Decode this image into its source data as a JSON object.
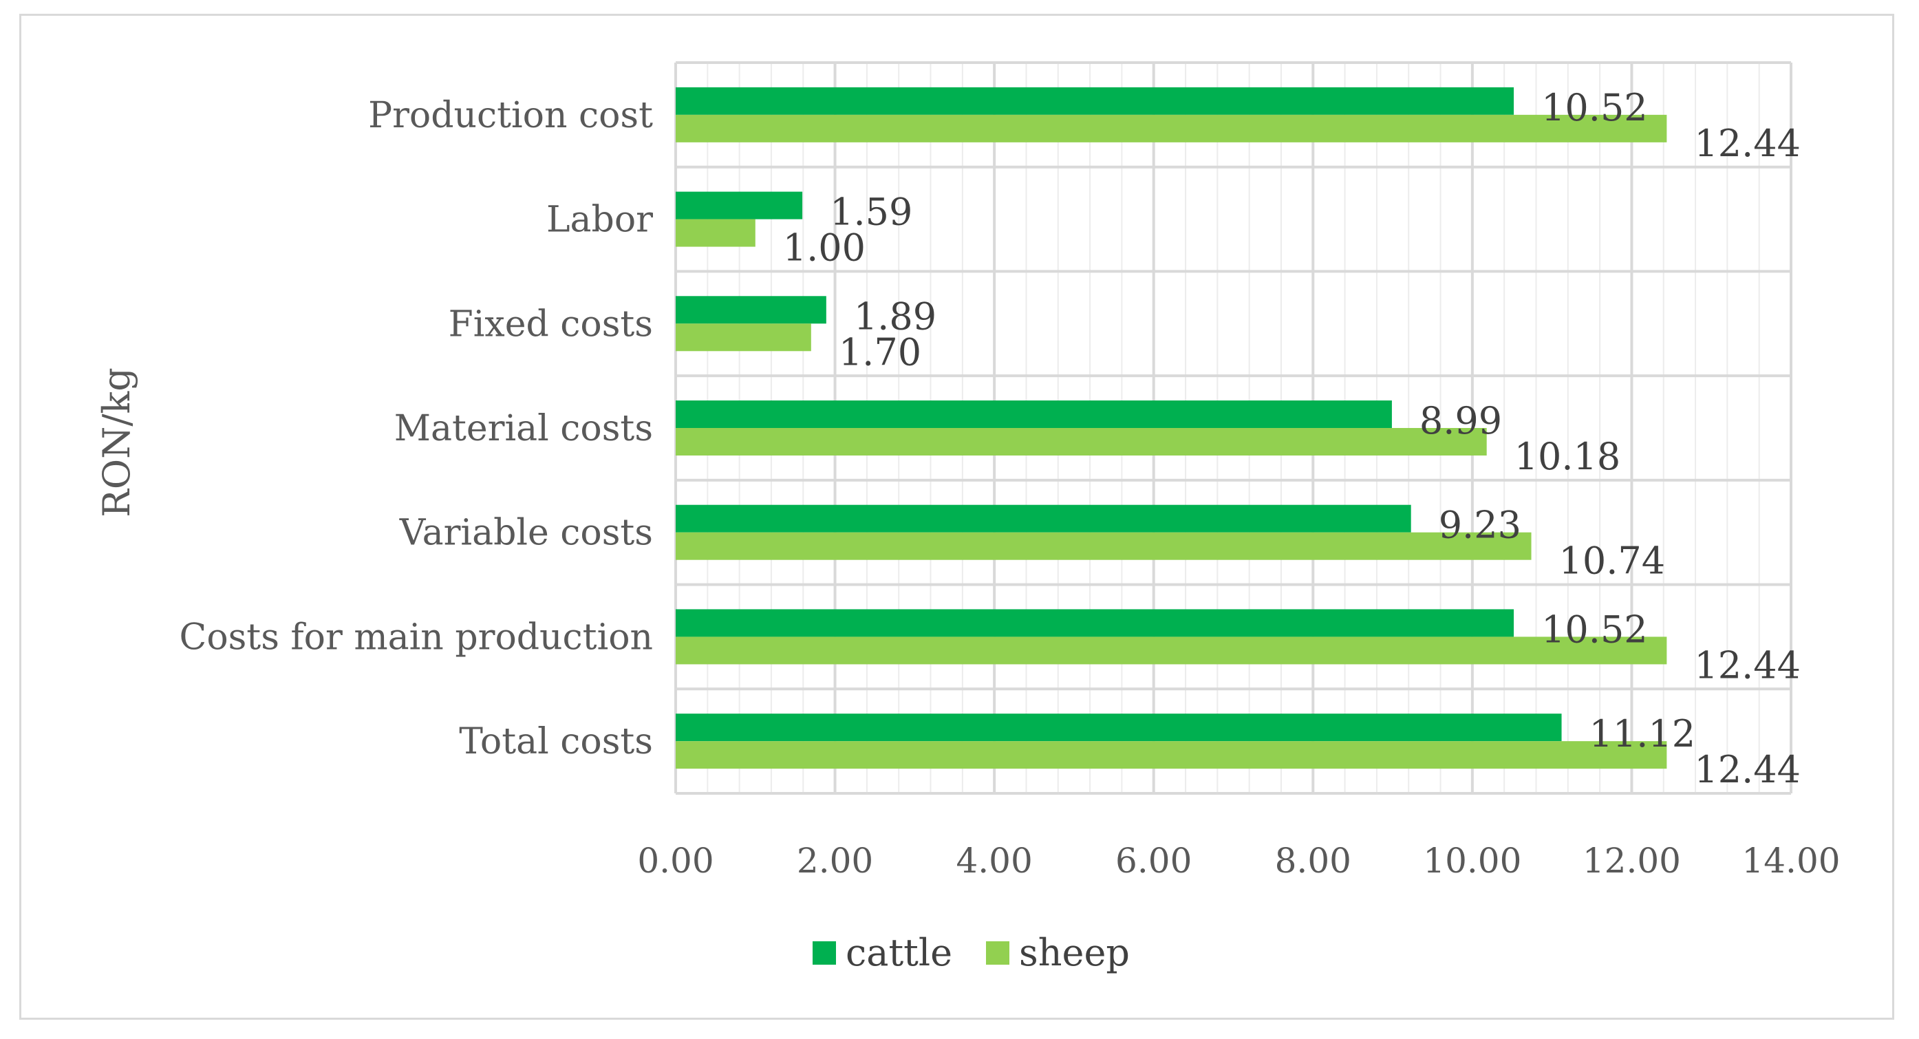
{
  "chart_data": {
    "type": "bar",
    "orientation": "horizontal",
    "categories": [
      "Total costs",
      "Costs for main production",
      "Variable costs",
      "Material costs",
      "Fixed costs",
      "Labor",
      "Production cost"
    ],
    "series": [
      {
        "name": "cattle",
        "color": "#00b050",
        "values": [
          11.12,
          10.52,
          9.23,
          8.99,
          1.89,
          1.59,
          10.52
        ],
        "labels": [
          "11.12",
          "10.52",
          "9.23",
          "8.99",
          "1.89",
          "1.59",
          "10.52"
        ]
      },
      {
        "name": "sheep",
        "color": "#92d050",
        "values": [
          12.44,
          12.44,
          10.74,
          10.18,
          1.7,
          1.0,
          12.44
        ],
        "labels": [
          "12.44",
          "12.44",
          "10.74",
          "10.18",
          "1.70",
          "1.00",
          "12.44"
        ]
      }
    ],
    "xlim": [
      0,
      14
    ],
    "x_ticks": [
      "0.00",
      "2.00",
      "4.00",
      "6.00",
      "8.00",
      "10.00",
      "12.00",
      "14.00"
    ],
    "ylabel": "RON/kg",
    "xlabel": "",
    "title": "",
    "grid": true,
    "legend_position": "bottom"
  }
}
